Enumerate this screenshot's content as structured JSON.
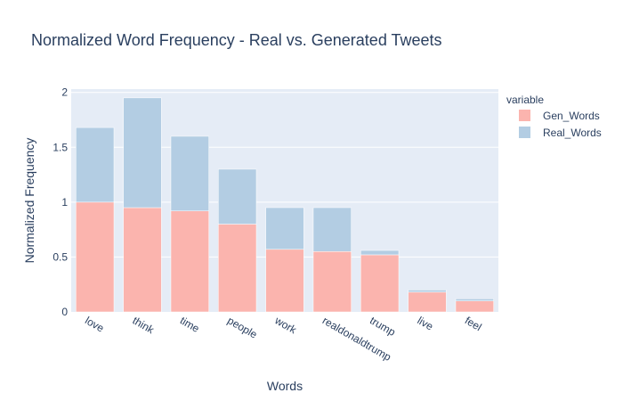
{
  "chart_data": {
    "type": "bar",
    "barmode": "stack",
    "title": "Normalized Word Frequency - Real vs. Generated Tweets",
    "xlabel": "Words",
    "ylabel": "Normalized Frequency",
    "categories": [
      "love",
      "think",
      "time",
      "people",
      "work",
      "realdonaldtrump",
      "trump",
      "live",
      "feel"
    ],
    "series": [
      {
        "name": "Gen_Words",
        "color": "#fbb4ae",
        "values": [
          1.0,
          0.95,
          0.92,
          0.8,
          0.57,
          0.55,
          0.52,
          0.18,
          0.1
        ]
      },
      {
        "name": "Real_Words",
        "color": "#b3cde3",
        "values": [
          0.68,
          1.0,
          0.68,
          0.5,
          0.38,
          0.4,
          0.04,
          0.02,
          0.02
        ]
      }
    ],
    "ylim": [
      0,
      2.03
    ],
    "yticks": [
      0,
      0.5,
      1,
      1.5,
      2
    ],
    "ytick_labels": [
      "0",
      "0.5",
      "1",
      "1.5",
      "2"
    ],
    "legend_title": "variable",
    "legend_position": "top-right",
    "grid": true,
    "plot_bgcolor": "#e5ecf6",
    "text_color": "#2a3f5f"
  }
}
